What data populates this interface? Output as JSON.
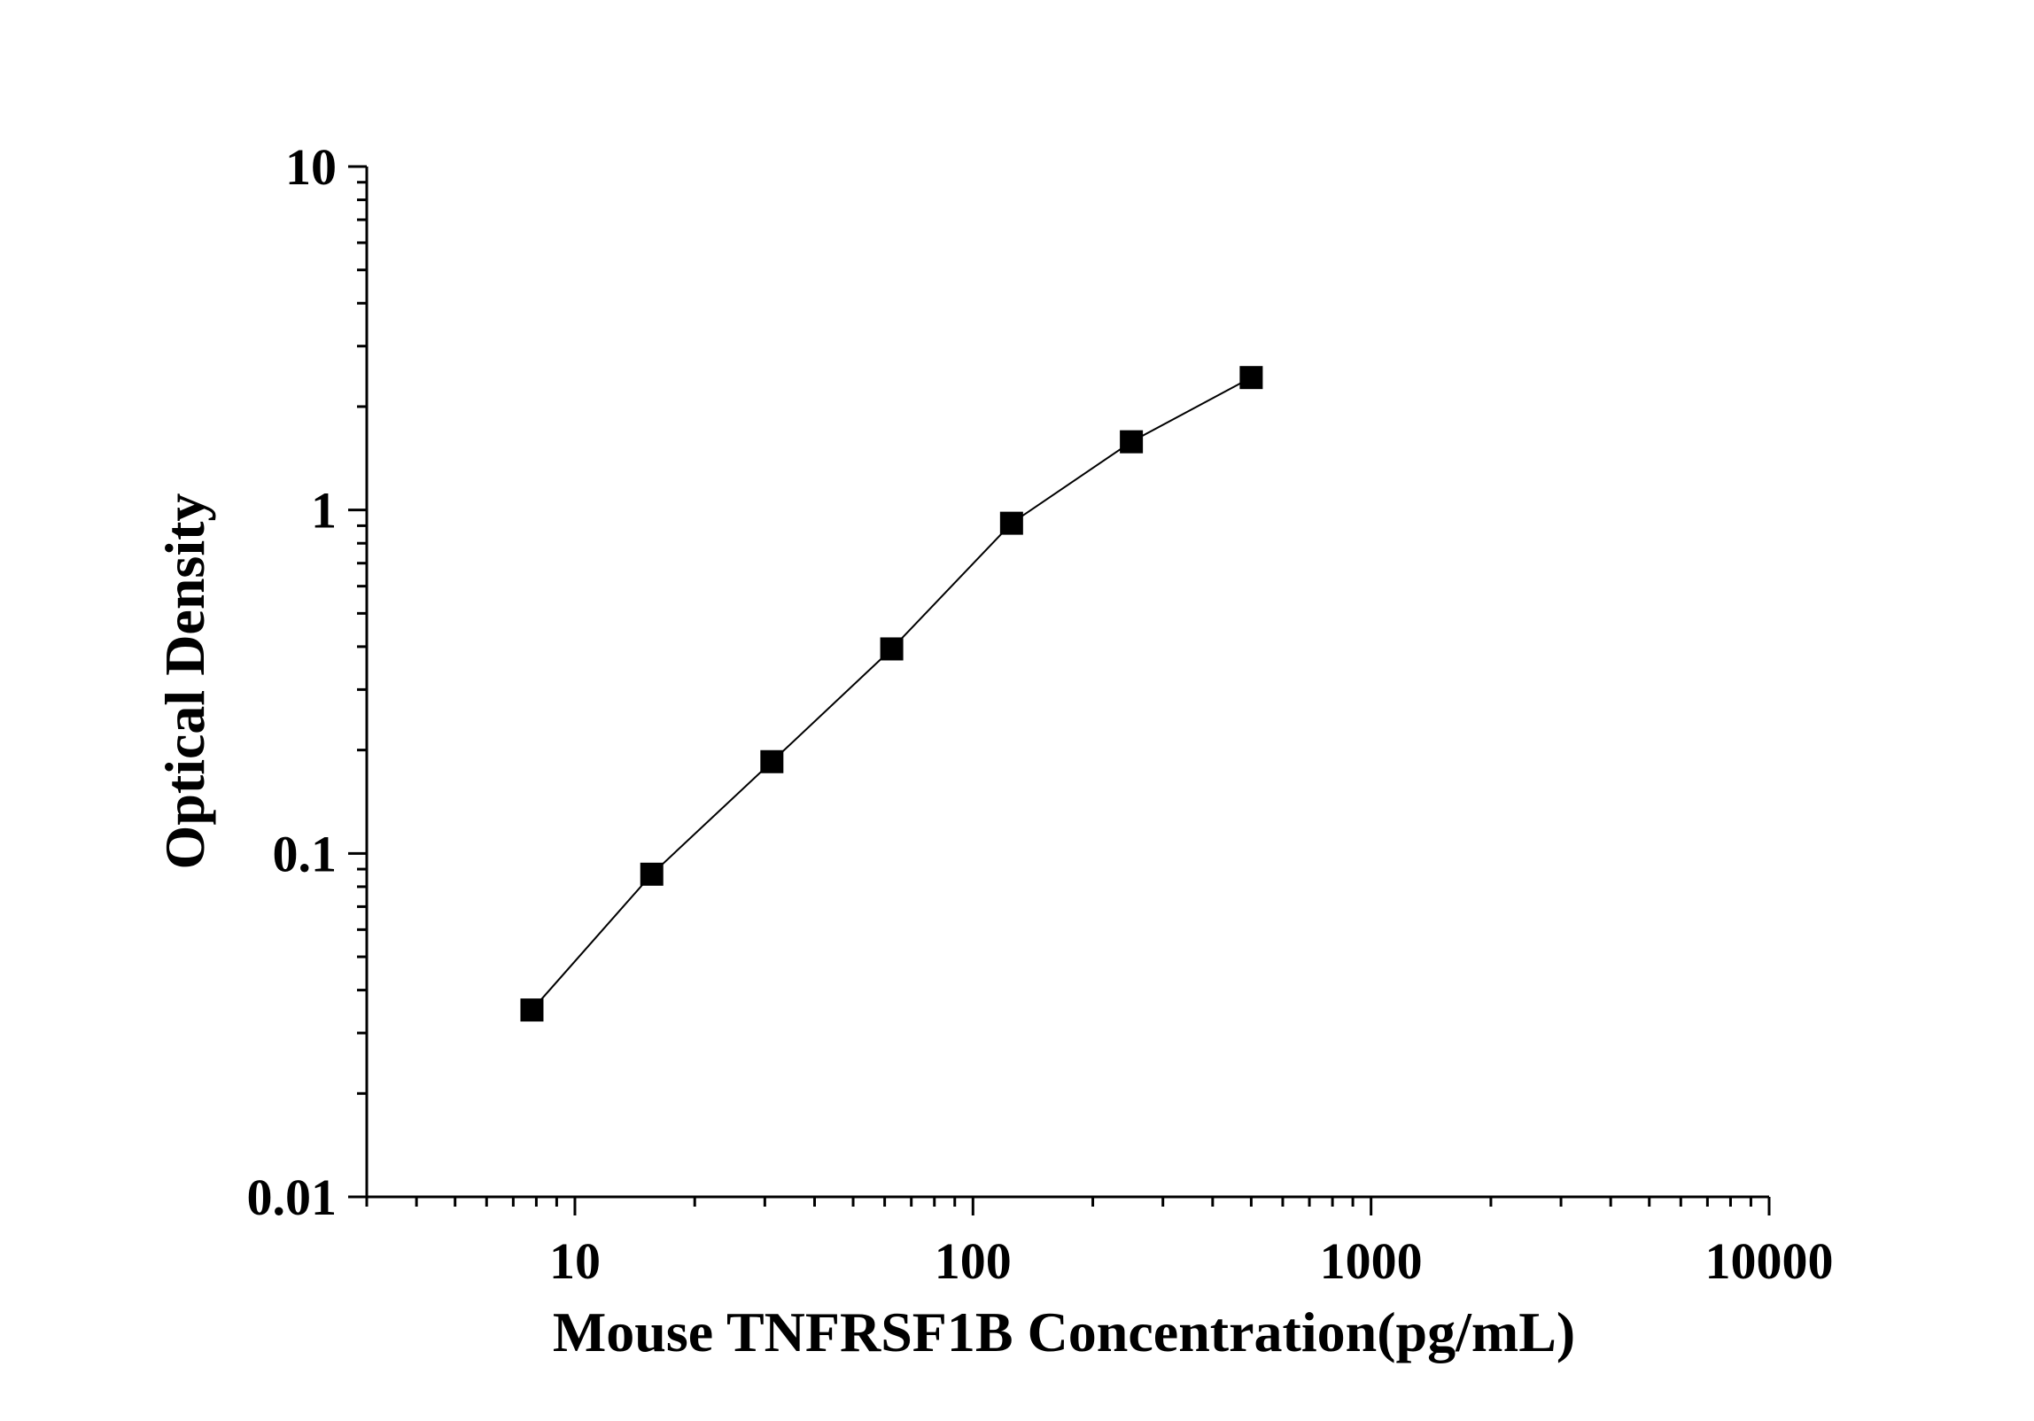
{
  "chart_data": {
    "type": "line",
    "x_label": "Mouse TNFRSF1B Concentration(pg/mL)",
    "y_label": "Optical Density",
    "x": [
      7.8,
      15.6,
      31.25,
      62.5,
      125,
      250,
      500
    ],
    "series": [
      {
        "color": "#000000",
        "values": [
          0.035,
          0.087,
          0.185,
          0.394,
          0.915,
          1.58,
          2.43
        ]
      }
    ],
    "x_log": true,
    "y_log": true,
    "xlim": [
      3,
      10000
    ],
    "ylim": [
      0.01,
      10
    ],
    "xticks": [
      10,
      100,
      1000,
      10000
    ],
    "yticks": [
      0.01,
      0.1,
      1,
      10
    ],
    "marker": "square",
    "grid": false
  }
}
